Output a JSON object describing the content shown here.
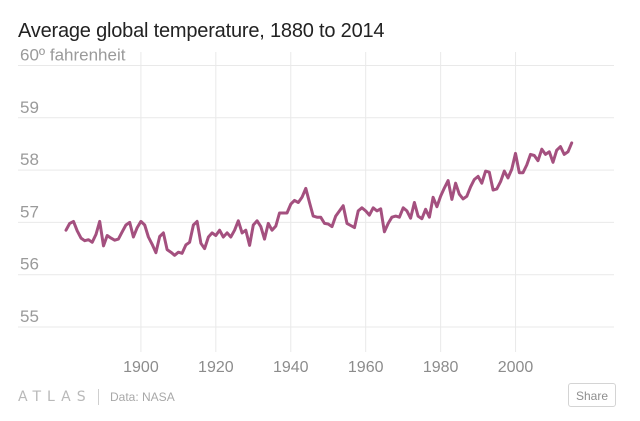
{
  "chart_data": {
    "type": "line",
    "title": "Average global temperature, 1880 to 2014",
    "ylabel": "fahrenheit",
    "y_ticks": [
      {
        "value": 55,
        "label": "55"
      },
      {
        "value": 56,
        "label": "56"
      },
      {
        "value": 57,
        "label": "57"
      },
      {
        "value": 58,
        "label": "58"
      },
      {
        "value": 59,
        "label": "59"
      },
      {
        "value": 60,
        "label": "60º fahrenheit"
      }
    ],
    "x_ticks": [
      {
        "value": 1900,
        "label": "1900"
      },
      {
        "value": 1920,
        "label": "1920"
      },
      {
        "value": 1940,
        "label": "1940"
      },
      {
        "value": 1960,
        "label": "1960"
      },
      {
        "value": 1980,
        "label": "1980"
      },
      {
        "value": 2000,
        "label": "2000"
      }
    ],
    "xlim": [
      1878,
      2018
    ],
    "ylim": [
      54.55,
      60.15
    ],
    "series": [
      {
        "name": "Average global temperature",
        "color": "#a4507f",
        "x_start": 1880,
        "values": [
          56.85,
          56.98,
          57.02,
          56.84,
          56.7,
          56.65,
          56.67,
          56.62,
          56.77,
          57.02,
          56.55,
          56.75,
          56.7,
          56.66,
          56.68,
          56.82,
          56.95,
          57.0,
          56.72,
          56.9,
          57.02,
          56.95,
          56.72,
          56.58,
          56.42,
          56.73,
          56.8,
          56.48,
          56.43,
          56.37,
          56.43,
          56.41,
          56.57,
          56.62,
          56.95,
          57.02,
          56.6,
          56.5,
          56.72,
          56.8,
          56.75,
          56.85,
          56.72,
          56.8,
          56.72,
          56.85,
          57.03,
          56.8,
          56.85,
          56.56,
          56.95,
          57.03,
          56.92,
          56.68,
          56.98,
          56.85,
          56.93,
          57.18,
          57.18,
          57.18,
          57.35,
          57.42,
          57.38,
          57.48,
          57.65,
          57.38,
          57.12,
          57.1,
          57.1,
          56.98,
          56.97,
          56.92,
          57.12,
          57.22,
          57.32,
          56.98,
          56.94,
          56.9,
          57.22,
          57.28,
          57.22,
          57.14,
          57.28,
          57.22,
          57.26,
          56.82,
          56.98,
          57.1,
          57.12,
          57.1,
          57.28,
          57.22,
          57.08,
          57.38,
          57.12,
          57.07,
          57.25,
          57.1,
          57.48,
          57.3,
          57.5,
          57.66,
          57.8,
          57.44,
          57.75,
          57.54,
          57.45,
          57.5,
          57.68,
          57.82,
          57.88,
          57.75,
          57.98,
          57.96,
          57.62,
          57.64,
          57.78,
          57.98,
          57.85,
          58.02,
          58.32,
          57.95,
          57.95,
          58.1,
          58.3,
          58.28,
          58.18,
          58.4,
          58.3,
          58.35,
          58.15,
          58.38,
          58.45,
          58.3,
          58.35,
          58.52
        ]
      }
    ]
  },
  "footer": {
    "logo_text": "ATLAS",
    "source": "Data: NASA",
    "share_label": "Share"
  }
}
